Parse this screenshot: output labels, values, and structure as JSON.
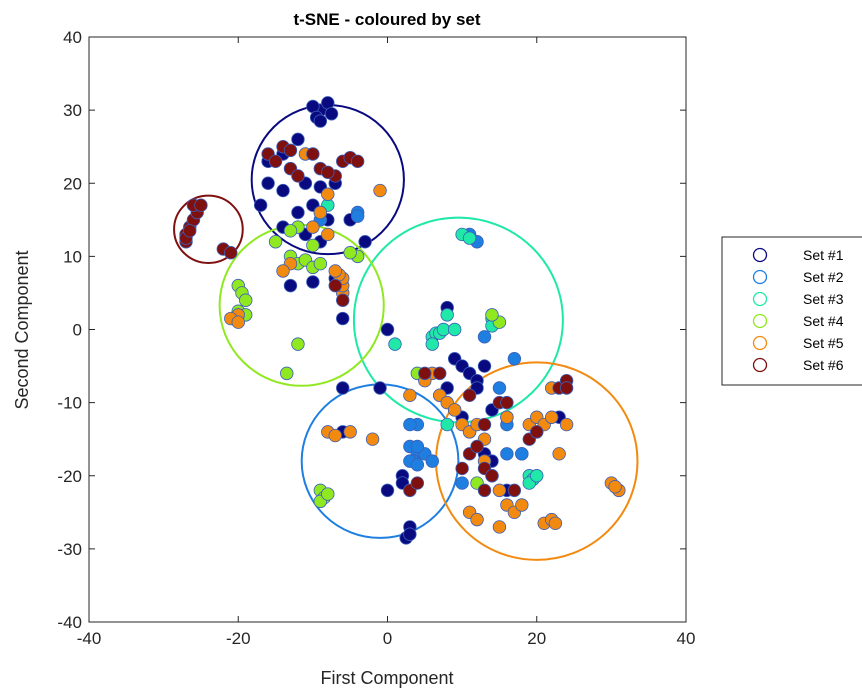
{
  "chart_data": {
    "type": "scatter",
    "title": "t-SNE - coloured by set",
    "xlabel": "First Component",
    "ylabel": "Second Component",
    "xlim": [
      -40,
      40
    ],
    "ylim": [
      -40,
      40
    ],
    "xticks": [
      -40,
      -20,
      0,
      20,
      40
    ],
    "yticks": [
      -40,
      -30,
      -20,
      -10,
      0,
      10,
      20,
      30,
      40
    ],
    "grid": false,
    "legend_position": "right",
    "series": [
      {
        "name": "Set #1",
        "color": "#0a0a80",
        "circle": {
          "cx": -8,
          "cy": 20.5,
          "r": 10.2
        },
        "points": [
          [
            -9,
            30
          ],
          [
            -8,
            31
          ],
          [
            -10,
            30.5
          ],
          [
            -7.5,
            29.5
          ],
          [
            -9.5,
            29
          ],
          [
            -9,
            28.5
          ],
          [
            -12,
            26
          ],
          [
            -14,
            24
          ],
          [
            -16,
            20
          ],
          [
            -17,
            17
          ],
          [
            -14,
            19
          ],
          [
            -11,
            20
          ],
          [
            -9,
            19.5
          ],
          [
            -7,
            20
          ],
          [
            -10,
            17
          ],
          [
            -12,
            16
          ],
          [
            -16,
            23
          ],
          [
            -8,
            15
          ],
          [
            -5,
            15
          ],
          [
            -3,
            12
          ],
          [
            -14,
            14
          ],
          [
            -11,
            13
          ],
          [
            -9,
            12
          ],
          [
            -10,
            6.5
          ],
          [
            -13,
            6
          ],
          [
            -7,
            7
          ],
          [
            -6,
            1.5
          ],
          [
            0,
            0
          ],
          [
            8,
            3
          ],
          [
            9,
            -4
          ],
          [
            10,
            -5
          ],
          [
            11,
            -6
          ],
          [
            12,
            -7
          ],
          [
            13,
            -5
          ],
          [
            12,
            -8
          ],
          [
            14,
            -11
          ],
          [
            16,
            -12
          ],
          [
            8,
            -8
          ],
          [
            7,
            -9
          ],
          [
            10,
            -12
          ],
          [
            11,
            -14
          ],
          [
            13,
            -17
          ],
          [
            14,
            -18
          ],
          [
            18,
            -17
          ],
          [
            -6,
            -8
          ],
          [
            -1,
            -8
          ],
          [
            23,
            -12
          ],
          [
            20,
            -14
          ],
          [
            16,
            -22
          ],
          [
            2,
            -20
          ],
          [
            0,
            -22
          ],
          [
            3,
            -27
          ],
          [
            2.5,
            -28.5
          ],
          [
            3,
            -28
          ],
          [
            2,
            -21
          ],
          [
            -6,
            -14
          ]
        ]
      },
      {
        "name": "Set #2",
        "color": "#1e7fe0",
        "circle": {
          "cx": -1,
          "cy": -18,
          "r": 10.5
        },
        "points": [
          [
            -4,
            16
          ],
          [
            -4,
            15.5
          ],
          [
            -9,
            15
          ],
          [
            12,
            12
          ],
          [
            11,
            13
          ],
          [
            13,
            -1
          ],
          [
            17,
            -4
          ],
          [
            16,
            -13
          ],
          [
            15,
            -8
          ],
          [
            4,
            -13
          ],
          [
            3,
            -13
          ],
          [
            3,
            -16
          ],
          [
            4,
            -17
          ],
          [
            5,
            -17
          ],
          [
            4,
            -16
          ],
          [
            3.5,
            -18
          ],
          [
            3,
            -18
          ],
          [
            4,
            -18.5
          ],
          [
            6,
            -18
          ],
          [
            10,
            -21
          ],
          [
            16,
            -17
          ],
          [
            18,
            -17
          ]
        ]
      },
      {
        "name": "Set #3",
        "color": "#20e8a8",
        "circle": {
          "cx": 9.5,
          "cy": 1.3,
          "r": 14
        },
        "points": [
          [
            -8,
            17
          ],
          [
            -9,
            16
          ],
          [
            6,
            -1
          ],
          [
            6.5,
            -0.5
          ],
          [
            7,
            -0.5
          ],
          [
            7.5,
            0
          ],
          [
            8,
            2
          ],
          [
            6,
            -2
          ],
          [
            1,
            -2
          ],
          [
            9,
            0
          ],
          [
            14,
            1.5
          ],
          [
            14,
            0.5
          ],
          [
            10,
            13
          ],
          [
            11,
            12.5
          ],
          [
            9,
            -11
          ],
          [
            8,
            -13
          ],
          [
            19,
            -20
          ],
          [
            19.5,
            -20.5
          ],
          [
            19,
            -21
          ],
          [
            20,
            -20
          ]
        ]
      },
      {
        "name": "Set #4",
        "color": "#90e820",
        "circle": {
          "cx": -11.5,
          "cy": 3.3,
          "r": 11
        },
        "points": [
          [
            -20,
            6
          ],
          [
            -19.5,
            5
          ],
          [
            -19,
            4
          ],
          [
            -20,
            2.5
          ],
          [
            -20,
            1.5
          ],
          [
            -19,
            2
          ],
          [
            -15,
            12
          ],
          [
            -13,
            10
          ],
          [
            -12,
            9
          ],
          [
            -11,
            9.5
          ],
          [
            -10,
            8.5
          ],
          [
            -9,
            9
          ],
          [
            -10,
            11.5
          ],
          [
            -12,
            14
          ],
          [
            -13,
            13.5
          ],
          [
            -12,
            -2
          ],
          [
            -13.5,
            -6
          ],
          [
            -9,
            -22
          ],
          [
            -8.5,
            -23
          ],
          [
            -9,
            -23.5
          ],
          [
            -8,
            -22.5
          ],
          [
            15,
            1
          ],
          [
            14,
            2
          ],
          [
            4,
            -6
          ],
          [
            12,
            -21
          ],
          [
            -4,
            10
          ],
          [
            -5,
            10.5
          ]
        ]
      },
      {
        "name": "Set #5",
        "color": "#f28a10",
        "circle": {
          "cx": 20,
          "cy": -18,
          "r": 13.5
        },
        "points": [
          [
            -1,
            19
          ],
          [
            -8,
            18.5
          ],
          [
            -9,
            16
          ],
          [
            -10,
            14
          ],
          [
            -11,
            24
          ],
          [
            -8,
            13
          ],
          [
            -13,
            9
          ],
          [
            -14,
            8
          ],
          [
            -20,
            2
          ],
          [
            -21,
            1.5
          ],
          [
            -20,
            1
          ],
          [
            -6,
            5
          ],
          [
            -6,
            6
          ],
          [
            -6,
            7
          ],
          [
            -6.5,
            7.5
          ],
          [
            -7,
            8
          ],
          [
            -8,
            -14
          ],
          [
            -7,
            -14.5
          ],
          [
            -2,
            -15
          ],
          [
            -5,
            -14
          ],
          [
            3,
            -9
          ],
          [
            7,
            -9
          ],
          [
            8,
            -10
          ],
          [
            9,
            -11
          ],
          [
            10,
            -13
          ],
          [
            11,
            -14
          ],
          [
            12,
            -13
          ],
          [
            13,
            -15
          ],
          [
            13,
            -18
          ],
          [
            14,
            -20
          ],
          [
            15,
            -22
          ],
          [
            16,
            -24
          ],
          [
            17,
            -25
          ],
          [
            18,
            -24
          ],
          [
            19,
            -13
          ],
          [
            20,
            -12
          ],
          [
            21,
            -13
          ],
          [
            22,
            -12
          ],
          [
            24,
            -13
          ],
          [
            23,
            -17
          ],
          [
            21,
            -26.5
          ],
          [
            22,
            -26
          ],
          [
            22.5,
            -26.5
          ],
          [
            30,
            -21
          ],
          [
            31,
            -22
          ],
          [
            30.5,
            -21.5
          ],
          [
            11,
            -25
          ],
          [
            12,
            -26
          ],
          [
            15,
            -27
          ],
          [
            16,
            -12
          ],
          [
            22,
            -8
          ],
          [
            6,
            -6
          ],
          [
            5,
            -7
          ]
        ]
      },
      {
        "name": "Set #6",
        "color": "#7f1010",
        "circle": {
          "cx": -24,
          "cy": 13.7,
          "r": 4.6
        },
        "points": [
          [
            -27,
            12
          ],
          [
            -27,
            13
          ],
          [
            -26.5,
            14
          ],
          [
            -26,
            15
          ],
          [
            -25.5,
            16
          ],
          [
            -26,
            17
          ],
          [
            -27,
            12.5
          ],
          [
            -26.5,
            13.5
          ],
          [
            -25,
            17
          ],
          [
            -22,
            11
          ],
          [
            -21,
            10.5
          ],
          [
            -16,
            24
          ],
          [
            -14,
            25
          ],
          [
            -15,
            23
          ],
          [
            -13,
            24.5
          ],
          [
            -13,
            22
          ],
          [
            -10,
            24
          ],
          [
            -9,
            22
          ],
          [
            -7,
            21
          ],
          [
            -6,
            23
          ],
          [
            -5,
            23.5
          ],
          [
            -4,
            23
          ],
          [
            -12,
            21
          ],
          [
            -8,
            21.5
          ],
          [
            -7,
            6
          ],
          [
            -6,
            4
          ],
          [
            3,
            -22
          ],
          [
            4,
            -21
          ],
          [
            10,
            -19
          ],
          [
            11,
            -17
          ],
          [
            12,
            -16
          ],
          [
            13,
            -19
          ],
          [
            13,
            -22
          ],
          [
            14,
            -20
          ],
          [
            17,
            -22
          ],
          [
            19,
            -15
          ],
          [
            20,
            -14
          ],
          [
            23,
            -8
          ],
          [
            24,
            -7
          ],
          [
            24,
            -8
          ],
          [
            13,
            -13
          ],
          [
            15,
            -10
          ],
          [
            16,
            -10
          ],
          [
            5,
            -6
          ],
          [
            7,
            -6
          ],
          [
            11,
            -9
          ]
        ]
      }
    ]
  }
}
